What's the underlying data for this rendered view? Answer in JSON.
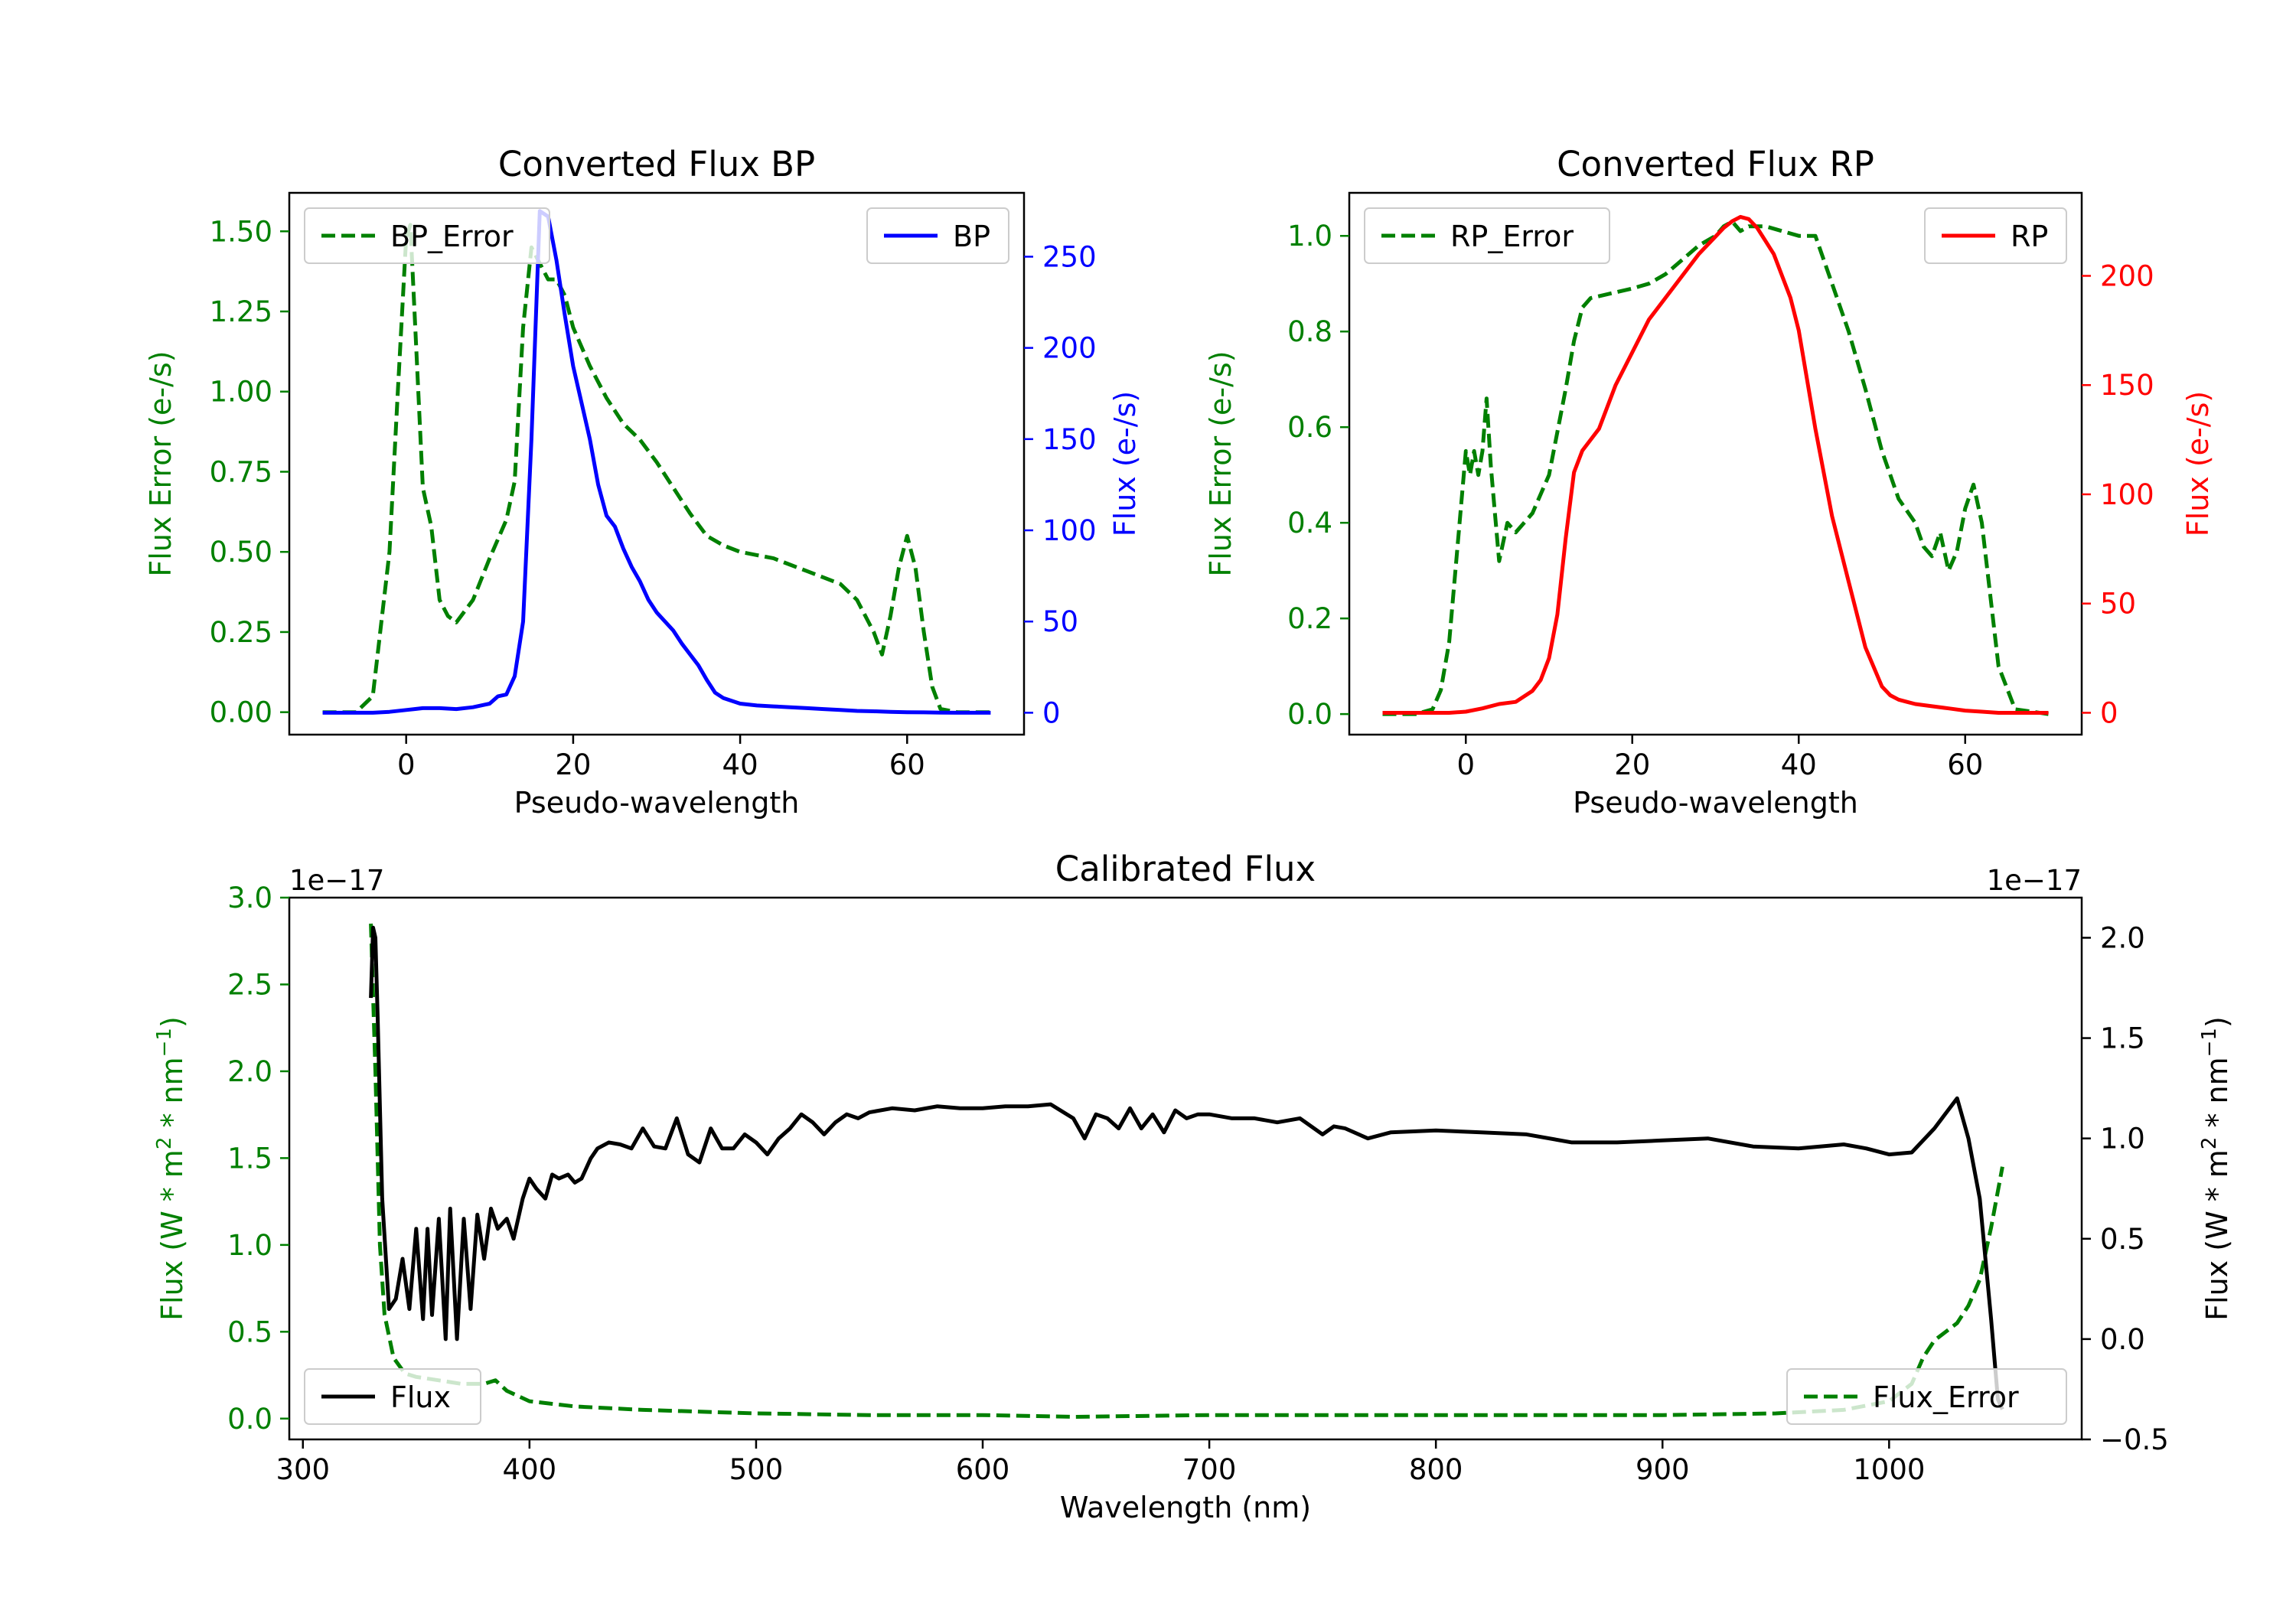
{
  "chart_data": [
    {
      "id": "bp",
      "type": "line",
      "title": "Converted Flux BP",
      "xlabel": "Pseudo-wavelength",
      "ylabel_left": "Flux Error (e-/s)",
      "ylabel_right": "Flux (e-/s)",
      "xlim": [
        -14,
        74
      ],
      "ylim_left": [
        -0.07,
        1.62
      ],
      "ylim_right": [
        -12,
        285
      ],
      "xticks": [
        0,
        20,
        40,
        60
      ],
      "yticks_left": [
        0.0,
        0.25,
        0.5,
        0.75,
        1.0,
        1.25,
        1.5
      ],
      "yticks_left_labels": [
        "0.00",
        "0.25",
        "0.50",
        "0.75",
        "1.00",
        "1.25",
        "1.50"
      ],
      "yticks_right": [
        0,
        50,
        100,
        150,
        200,
        250
      ],
      "yticks_right_labels": [
        "0",
        "50",
        "100",
        "150",
        "200",
        "250"
      ],
      "left_axis_color": "#008000",
      "right_axis_color": "#0000ff",
      "series": [
        {
          "name": "BP_Error",
          "axis": "left",
          "color": "#008000",
          "style": "dashed",
          "x": [
            -10,
            -6,
            -4,
            -2,
            -1,
            0,
            0.5,
            1,
            2,
            3,
            4,
            5,
            6,
            8,
            10,
            12,
            13,
            14,
            15,
            16,
            17,
            18,
            19,
            20,
            22,
            24,
            26,
            28,
            30,
            32,
            34,
            36,
            38,
            40,
            42,
            44,
            46,
            48,
            50,
            52,
            54,
            56,
            57,
            58,
            59,
            60,
            61,
            62,
            63,
            64,
            66,
            68,
            70
          ],
          "y": [
            0,
            0,
            0.05,
            0.5,
            1.0,
            1.48,
            1.52,
            1.25,
            0.7,
            0.58,
            0.35,
            0.3,
            0.28,
            0.35,
            0.48,
            0.6,
            0.72,
            1.2,
            1.45,
            1.4,
            1.35,
            1.35,
            1.3,
            1.2,
            1.08,
            0.98,
            0.9,
            0.85,
            0.78,
            0.7,
            0.62,
            0.55,
            0.52,
            0.5,
            0.49,
            0.48,
            0.46,
            0.44,
            0.42,
            0.4,
            0.35,
            0.25,
            0.18,
            0.3,
            0.45,
            0.55,
            0.45,
            0.25,
            0.08,
            0.01,
            0,
            0,
            0
          ]
        },
        {
          "name": "BP",
          "axis": "right",
          "color": "#0000ff",
          "style": "solid",
          "x": [
            -10,
            -6,
            -4,
            -2,
            0,
            1,
            2,
            4,
            6,
            8,
            10,
            11,
            12,
            13,
            14,
            15,
            16,
            17,
            18,
            19,
            20,
            21,
            22,
            23,
            24,
            25,
            26,
            27,
            28,
            29,
            30,
            31,
            32,
            33,
            34,
            35,
            36,
            37,
            38,
            40,
            42,
            44,
            46,
            48,
            50,
            52,
            54,
            56,
            58,
            60,
            62,
            64,
            66,
            68,
            70
          ],
          "y": [
            0,
            0,
            0,
            0.5,
            1.5,
            2,
            2.5,
            2.5,
            2,
            3,
            5,
            9,
            10,
            20,
            50,
            150,
            275,
            272,
            248,
            218,
            190,
            170,
            150,
            125,
            108,
            102,
            90,
            80,
            72,
            62,
            55,
            50,
            45,
            38,
            32,
            26,
            18,
            11,
            8,
            5,
            4,
            3.5,
            3,
            2.5,
            2,
            1.5,
            1,
            0.8,
            0.5,
            0.3,
            0.2,
            0.1,
            0,
            0,
            0
          ]
        }
      ],
      "legend": [
        {
          "label": "BP_Error",
          "position": "upper-left"
        },
        {
          "label": "BP",
          "position": "upper-right"
        }
      ]
    },
    {
      "id": "rp",
      "type": "line",
      "title": "Converted Flux RP",
      "xlabel": "Pseudo-wavelength",
      "ylabel_left": "Flux Error (e-/s)",
      "ylabel_right": "Flux (e-/s)",
      "xlim": [
        -14,
        74
      ],
      "ylim_left": [
        -0.043,
        1.09
      ],
      "ylim_right": [
        -10,
        238
      ],
      "xticks": [
        0,
        20,
        40,
        60
      ],
      "yticks_left": [
        0.0,
        0.2,
        0.4,
        0.6,
        0.8,
        1.0
      ],
      "yticks_left_labels": [
        "0.0",
        "0.2",
        "0.4",
        "0.6",
        "0.8",
        "1.0"
      ],
      "yticks_right": [
        0,
        50,
        100,
        150,
        200
      ],
      "yticks_right_labels": [
        "0",
        "50",
        "100",
        "150",
        "200"
      ],
      "left_axis_color": "#008000",
      "right_axis_color": "#ff0000",
      "series": [
        {
          "name": "RP_Error",
          "axis": "left",
          "color": "#008000",
          "style": "dashed",
          "x": [
            -10,
            -6,
            -4,
            -3,
            -2,
            -1,
            0,
            0.5,
            1,
            1.5,
            2,
            2.5,
            3,
            3.5,
            4,
            5,
            6,
            8,
            10,
            12,
            13,
            14,
            15,
            20,
            22,
            24,
            26,
            28,
            30,
            31,
            32,
            33,
            34,
            36,
            38,
            40,
            42,
            44,
            46,
            48,
            50,
            52,
            54,
            55,
            56,
            57,
            58,
            59,
            60,
            61,
            62,
            63,
            64,
            66,
            70
          ],
          "y": [
            0,
            0,
            0.01,
            0.05,
            0.15,
            0.35,
            0.55,
            0.5,
            0.55,
            0.5,
            0.55,
            0.66,
            0.52,
            0.42,
            0.32,
            0.4,
            0.38,
            0.42,
            0.5,
            0.68,
            0.78,
            0.85,
            0.87,
            0.89,
            0.9,
            0.92,
            0.95,
            0.98,
            1.0,
            1.02,
            1.03,
            1.01,
            1.02,
            1.02,
            1.01,
            1.0,
            1.0,
            0.9,
            0.8,
            0.68,
            0.55,
            0.45,
            0.4,
            0.35,
            0.33,
            0.38,
            0.3,
            0.34,
            0.43,
            0.48,
            0.4,
            0.25,
            0.1,
            0.01,
            0
          ]
        },
        {
          "name": "RP",
          "axis": "right",
          "color": "#ff0000",
          "style": "solid",
          "x": [
            -10,
            -6,
            -4,
            -2,
            0,
            2,
            4,
            6,
            8,
            9,
            10,
            11,
            12,
            13,
            14,
            15,
            16,
            18,
            20,
            22,
            24,
            26,
            28,
            30,
            31,
            32,
            33,
            34,
            35,
            36,
            37,
            38,
            39,
            40,
            42,
            44,
            46,
            48,
            50,
            51,
            52,
            53,
            54,
            56,
            58,
            60,
            62,
            64,
            66,
            68,
            70
          ],
          "y": [
            0,
            0,
            0,
            0,
            0.5,
            2,
            4,
            5,
            10,
            15,
            25,
            45,
            80,
            110,
            120,
            125,
            130,
            150,
            165,
            180,
            190,
            200,
            210,
            218,
            222,
            225,
            227,
            226,
            222,
            216,
            210,
            200,
            190,
            175,
            130,
            90,
            60,
            30,
            12,
            8,
            6,
            5,
            4,
            3,
            2,
            1,
            0.5,
            0,
            0,
            0,
            0
          ]
        }
      ],
      "legend": [
        {
          "label": "RP_Error",
          "position": "upper-left"
        },
        {
          "label": "RP",
          "position": "upper-right"
        }
      ]
    },
    {
      "id": "cal",
      "type": "line",
      "title": "Calibrated Flux",
      "xlabel": "Wavelength (nm)",
      "ylabel_left": "Flux (W * m² * nm⁻¹)",
      "ylabel_right": "Flux (W * m² * nm⁻¹)",
      "offset_left": "1e−17",
      "offset_right": "1e−17",
      "xlim": [
        294,
        1085
      ],
      "ylim_left": [
        -0.12,
        3.0
      ],
      "ylim_right": [
        -0.5,
        2.2
      ],
      "xticks": [
        300,
        400,
        500,
        600,
        700,
        800,
        900,
        1000
      ],
      "yticks_left": [
        0.0,
        0.5,
        1.0,
        1.5,
        2.0,
        2.5,
        3.0
      ],
      "yticks_left_labels": [
        "0.0",
        "0.5",
        "1.0",
        "1.5",
        "2.0",
        "2.5",
        "3.0"
      ],
      "yticks_right": [
        -0.5,
        0.0,
        0.5,
        1.0,
        1.5,
        2.0
      ],
      "yticks_right_labels": [
        "−0.5",
        "0.0",
        "0.5",
        "1.0",
        "1.5",
        "2.0"
      ],
      "left_axis_color": "#008000",
      "right_axis_color": "#000000",
      "series": [
        {
          "name": "Flux_Error",
          "axis": "left",
          "color": "#008000",
          "style": "dashed",
          "x": [
            330,
            332,
            334,
            336,
            340,
            345,
            350,
            360,
            370,
            380,
            385,
            390,
            400,
            420,
            450,
            500,
            550,
            600,
            640,
            700,
            800,
            900,
            950,
            980,
            1000,
            1010,
            1015,
            1020,
            1025,
            1030,
            1035,
            1040,
            1045,
            1050
          ],
          "y": [
            2.85,
            2.0,
            1.0,
            0.6,
            0.35,
            0.26,
            0.24,
            0.22,
            0.2,
            0.2,
            0.22,
            0.16,
            0.1,
            0.07,
            0.05,
            0.03,
            0.02,
            0.02,
            0.01,
            0.02,
            0.02,
            0.02,
            0.03,
            0.05,
            0.1,
            0.2,
            0.35,
            0.45,
            0.5,
            0.55,
            0.65,
            0.8,
            1.1,
            1.45
          ]
        },
        {
          "name": "Flux",
          "axis": "right",
          "color": "#000000",
          "style": "solid",
          "x": [
            330,
            331,
            332,
            333,
            335,
            338,
            341,
            344,
            347,
            350,
            353,
            355,
            357,
            360,
            363,
            365,
            368,
            371,
            374,
            377,
            380,
            383,
            386,
            390,
            393,
            397,
            400,
            403,
            407,
            410,
            413,
            417,
            420,
            423,
            427,
            430,
            435,
            440,
            445,
            450,
            455,
            460,
            465,
            470,
            475,
            480,
            485,
            490,
            495,
            500,
            505,
            510,
            515,
            520,
            525,
            530,
            535,
            540,
            545,
            550,
            560,
            570,
            580,
            590,
            600,
            610,
            620,
            630,
            640,
            645,
            650,
            655,
            660,
            665,
            670,
            675,
            680,
            685,
            690,
            695,
            700,
            710,
            720,
            730,
            740,
            750,
            755,
            760,
            770,
            780,
            800,
            820,
            840,
            860,
            880,
            900,
            920,
            940,
            960,
            980,
            990,
            1000,
            1010,
            1020,
            1030,
            1035,
            1040,
            1045,
            1048,
            1050
          ],
          "y": [
            1.7,
            2.05,
            2.0,
            1.6,
            0.7,
            0.15,
            0.2,
            0.4,
            0.15,
            0.55,
            0.1,
            0.55,
            0.12,
            0.6,
            0.0,
            0.65,
            0.0,
            0.6,
            0.15,
            0.62,
            0.4,
            0.65,
            0.55,
            0.6,
            0.5,
            0.7,
            0.8,
            0.75,
            0.7,
            0.82,
            0.8,
            0.82,
            0.78,
            0.8,
            0.9,
            0.95,
            0.98,
            0.97,
            0.95,
            1.05,
            0.96,
            0.95,
            1.1,
            0.92,
            0.88,
            1.05,
            0.95,
            0.95,
            1.02,
            0.98,
            0.92,
            1.0,
            1.05,
            1.12,
            1.08,
            1.02,
            1.08,
            1.12,
            1.1,
            1.13,
            1.15,
            1.14,
            1.16,
            1.15,
            1.15,
            1.16,
            1.16,
            1.17,
            1.1,
            1.0,
            1.12,
            1.1,
            1.05,
            1.15,
            1.05,
            1.12,
            1.03,
            1.14,
            1.1,
            1.12,
            1.12,
            1.1,
            1.1,
            1.08,
            1.1,
            1.02,
            1.06,
            1.05,
            1.0,
            1.03,
            1.04,
            1.03,
            1.02,
            0.98,
            0.98,
            0.99,
            1.0,
            0.96,
            0.95,
            0.97,
            0.95,
            0.92,
            0.93,
            1.05,
            1.2,
            1.0,
            0.7,
            0.1,
            -0.3,
            -0.35
          ]
        }
      ],
      "legend": [
        {
          "label": "Flux",
          "position": "lower-left"
        },
        {
          "label": "Flux_Error",
          "position": "lower-right"
        }
      ]
    }
  ]
}
